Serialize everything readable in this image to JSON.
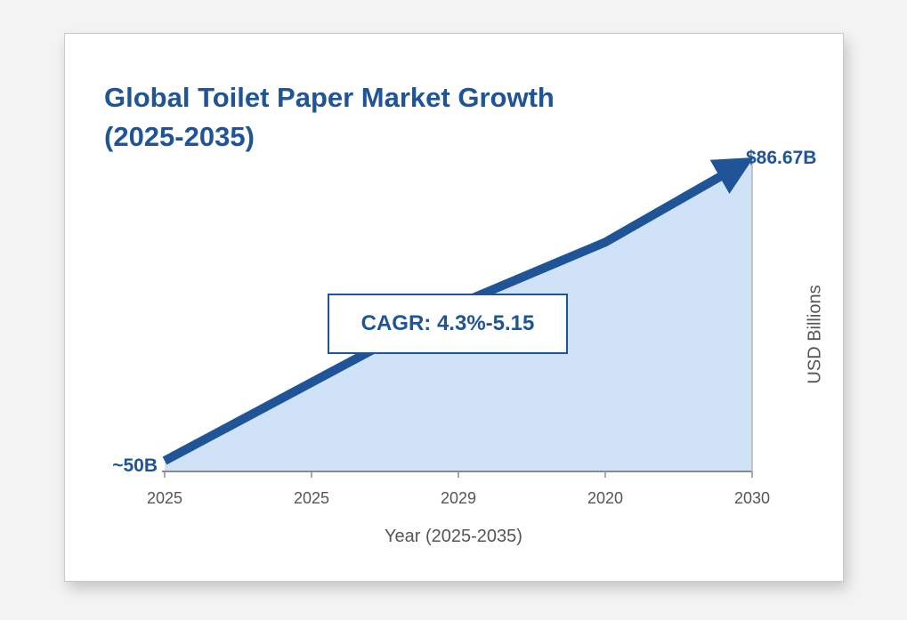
{
  "chart_data": {
    "type": "area",
    "title_lines": [
      "Global Toilet Paper Market Growth",
      "(2025-2035)"
    ],
    "xlabel": "Year (2025-2035)",
    "ylabel": "USD Billions",
    "x_tick_labels": [
      "2025",
      "2025",
      "2029",
      "2020",
      "2030"
    ],
    "series": [
      {
        "values": [
          50,
          59.5,
          69,
          76.5,
          86.67
        ]
      }
    ],
    "ylim": [
      50,
      86.67
    ],
    "annotations": {
      "start_label": "~50B",
      "end_label": "$86.67B",
      "cagr_label": "CAGR: 4.3%-5.15"
    },
    "grid": false,
    "colors": {
      "line": "#1f5497",
      "fill": "#cfe2f7",
      "text_primary": "#1f5497",
      "text_secondary": "#555555"
    }
  }
}
